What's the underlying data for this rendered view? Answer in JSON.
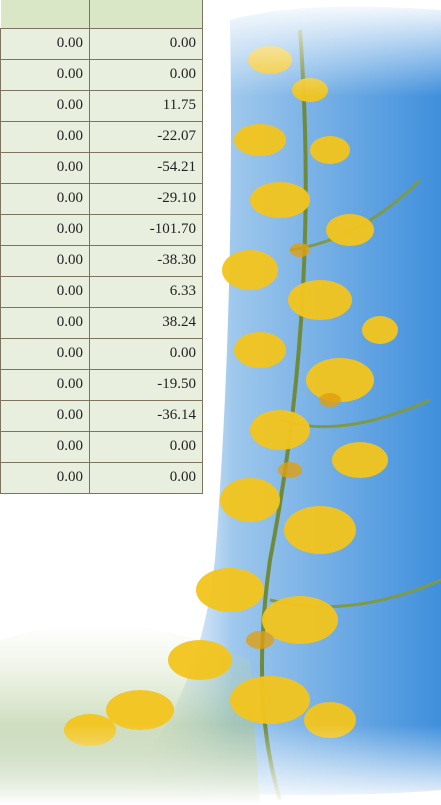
{
  "table": {
    "rows": [
      [
        "0.00",
        "0.00"
      ],
      [
        "0.00",
        "0.00"
      ],
      [
        "0.00",
        "11.75"
      ],
      [
        "0.00",
        "-22.07"
      ],
      [
        "0.00",
        "-54.21"
      ],
      [
        "0.00",
        "-29.10"
      ],
      [
        "0.00",
        "-101.70"
      ],
      [
        "0.00",
        "-38.30"
      ],
      [
        "0.00",
        "6.33"
      ],
      [
        "0.00",
        "38.24"
      ],
      [
        "0.00",
        "0.00"
      ],
      [
        "0.00",
        "-19.50"
      ],
      [
        "0.00",
        "-36.14"
      ],
      [
        "0.00",
        "0.00"
      ],
      [
        "0.00",
        "0.00"
      ]
    ]
  }
}
